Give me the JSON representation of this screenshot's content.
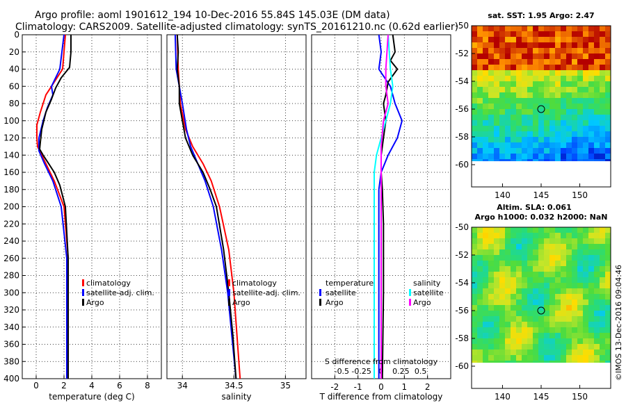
{
  "header": {
    "title_line1": "Argo profile: aoml 1901612_194 10-Dec-2016 55.84S 145.03E (DM data)",
    "title_line2": "Climatology: CARS2009. Satellite-adjusted climatology: synTS_20161210.nc (0.62d earlier)"
  },
  "colors": {
    "climatology": "#ff0000",
    "satellite": "#0000ff",
    "argo": "#000000",
    "t_satellite": "#00ffff",
    "s_argo": "#ff00ff"
  },
  "chart_data": [
    {
      "type": "line",
      "name": "temperature",
      "xlabel": "temperature (deg C)",
      "xlim": [
        -1,
        9
      ],
      "ylim": [
        0,
        400
      ],
      "xticks": [
        "0",
        "2",
        "4",
        "6",
        "8"
      ],
      "xtick_values": [
        0,
        2,
        4,
        6,
        8
      ],
      "yticks": [
        "0",
        "20",
        "40",
        "60",
        "80",
        "100",
        "120",
        "140",
        "160",
        "180",
        "200",
        "220",
        "240",
        "260",
        "280",
        "300",
        "320",
        "340",
        "360",
        "380",
        "400"
      ],
      "legend": [
        "climatology",
        "satellite-adj. clim.",
        "Argo"
      ],
      "series": [
        {
          "name": "climatology",
          "depth": [
            0,
            40,
            55,
            70,
            90,
            105,
            120,
            130,
            150,
            170,
            200,
            260,
            400
          ],
          "values": [
            2.1,
            1.9,
            1.3,
            0.7,
            0.3,
            0.05,
            0.05,
            0.1,
            0.7,
            1.3,
            2.0,
            2.3,
            2.3
          ]
        },
        {
          "name": "satellite-adj. clim.",
          "depth": [
            0,
            40,
            60,
            70,
            85,
            100,
            120,
            135,
            150,
            170,
            200,
            260,
            400
          ],
          "values": [
            2.0,
            1.7,
            1.1,
            1.2,
            0.8,
            0.5,
            0.2,
            0.2,
            0.6,
            1.2,
            1.8,
            2.2,
            2.2
          ]
        },
        {
          "name": "Argo",
          "depth": [
            0,
            20,
            38,
            50,
            62,
            75,
            90,
            110,
            125,
            133,
            140,
            150,
            160,
            175,
            200,
            260,
            400
          ],
          "values": [
            2.5,
            2.5,
            2.4,
            1.8,
            1.4,
            1.1,
            0.7,
            0.4,
            0.3,
            0.25,
            0.5,
            0.9,
            1.3,
            1.7,
            2.1,
            2.3,
            2.3
          ]
        }
      ]
    },
    {
      "type": "line",
      "name": "salinity",
      "xlabel": "salinity",
      "xlim": [
        33.85,
        35.2
      ],
      "ylim": [
        0,
        400
      ],
      "xticks": [
        "34",
        "34.5",
        "35"
      ],
      "xtick_values": [
        34,
        34.5,
        35
      ],
      "legend": [
        "climatology",
        "satellite-adj. clim.",
        "Argo"
      ],
      "series": [
        {
          "name": "climatology",
          "depth": [
            0,
            40,
            80,
            110,
            130,
            150,
            170,
            200,
            250,
            300,
            350,
            400
          ],
          "values": [
            33.95,
            33.96,
            33.98,
            34.03,
            34.1,
            34.2,
            34.28,
            34.36,
            34.45,
            34.5,
            34.53,
            34.56
          ]
        },
        {
          "name": "satellite-adj. clim.",
          "depth": [
            0,
            40,
            60,
            80,
            110,
            130,
            150,
            170,
            200,
            250,
            300,
            350,
            400
          ],
          "values": [
            33.93,
            33.94,
            33.97,
            34.0,
            34.04,
            34.08,
            34.15,
            34.22,
            34.3,
            34.38,
            34.44,
            34.48,
            34.52
          ]
        },
        {
          "name": "Argo",
          "depth": [
            0,
            20,
            40,
            60,
            80,
            100,
            120,
            140,
            160,
            180,
            200,
            250,
            300,
            350,
            400
          ],
          "values": [
            33.95,
            33.96,
            33.95,
            33.97,
            33.97,
            34.0,
            34.03,
            34.1,
            34.2,
            34.27,
            34.33,
            34.4,
            34.45,
            34.49,
            34.52
          ]
        }
      ]
    },
    {
      "type": "line",
      "name": "difference",
      "xlabel": "T difference from climatology",
      "xlabel_top": "S difference from climatology",
      "xlim": [
        -3,
        3
      ],
      "ylim": [
        0,
        400
      ],
      "xticks": [
        "-2",
        "-1",
        "0",
        "1",
        "2"
      ],
      "xtick_values": [
        -2,
        -1,
        0,
        1,
        2
      ],
      "sticks": [
        "-0.5",
        "-0.25",
        "0",
        "0.25",
        "0.5"
      ],
      "stick_values": [
        -1.7,
        -0.85,
        0,
        0.85,
        1.7
      ],
      "legend_temperature": {
        "title": "temperature",
        "items": [
          "satellite",
          "Argo"
        ]
      },
      "legend_salinity": {
        "title": "salinity",
        "items": [
          "satellite",
          "Argo"
        ]
      },
      "series": [
        {
          "name": "T satellite",
          "depth": [
            0,
            20,
            40,
            60,
            80,
            100,
            120,
            140,
            160,
            180,
            220,
            300,
            400
          ],
          "values": [
            -0.1,
            0.0,
            -0.1,
            0.4,
            0.6,
            0.9,
            0.7,
            0.3,
            0.0,
            -0.1,
            -0.1,
            -0.1,
            -0.1
          ]
        },
        {
          "name": "T Argo",
          "depth": [
            0,
            20,
            30,
            40,
            55,
            70,
            80,
            100,
            120,
            140,
            160,
            180,
            220,
            300,
            400
          ],
          "values": [
            0.5,
            0.6,
            0.4,
            0.7,
            0.3,
            0.2,
            0.1,
            0.2,
            0.1,
            0.0,
            0.0,
            0.05,
            0.1,
            0.1,
            0.05
          ]
        },
        {
          "name": "S satellite",
          "depth": [
            0,
            40,
            60,
            80,
            100,
            120,
            140,
            160,
            200,
            300,
            400
          ],
          "values": [
            0.3,
            0.4,
            0.5,
            0.4,
            0.2,
            0.0,
            -0.2,
            -0.3,
            -0.3,
            -0.3,
            -0.3
          ]
        },
        {
          "name": "S Argo",
          "depth": [
            0,
            40,
            60,
            80,
            100,
            130,
            160,
            200,
            300,
            400
          ],
          "values": [
            0.3,
            0.2,
            0.2,
            0.3,
            0.1,
            0.0,
            0.0,
            0.0,
            0.0,
            0.0
          ]
        }
      ]
    },
    {
      "type": "heatmap",
      "name": "sst_map",
      "title": "sat. SST: 1.95 Argo: 2.47",
      "xticks": [
        "140",
        "145",
        "150"
      ],
      "yticks": [
        "-50",
        "-52",
        "-54",
        "-56",
        "-58",
        "-60"
      ],
      "xlim": [
        136,
        154
      ],
      "ylim": [
        -61.6,
        -50
      ],
      "marker": [
        145,
        -56
      ]
    },
    {
      "type": "heatmap",
      "name": "sla_map",
      "title_line1": "Altim. SLA: 0.061",
      "title_line2": "Argo h1000: 0.032 h2000: NaN",
      "xticks": [
        "140",
        "145",
        "150"
      ],
      "yticks": [
        "-50",
        "-52",
        "-54",
        "-56",
        "-58",
        "-60"
      ],
      "xlim": [
        136,
        154
      ],
      "ylim": [
        -61.6,
        -50
      ],
      "marker": [
        145,
        -56
      ]
    }
  ],
  "footer": {
    "credit": "©IMOS 13-Dec-2016 09:04:46"
  }
}
